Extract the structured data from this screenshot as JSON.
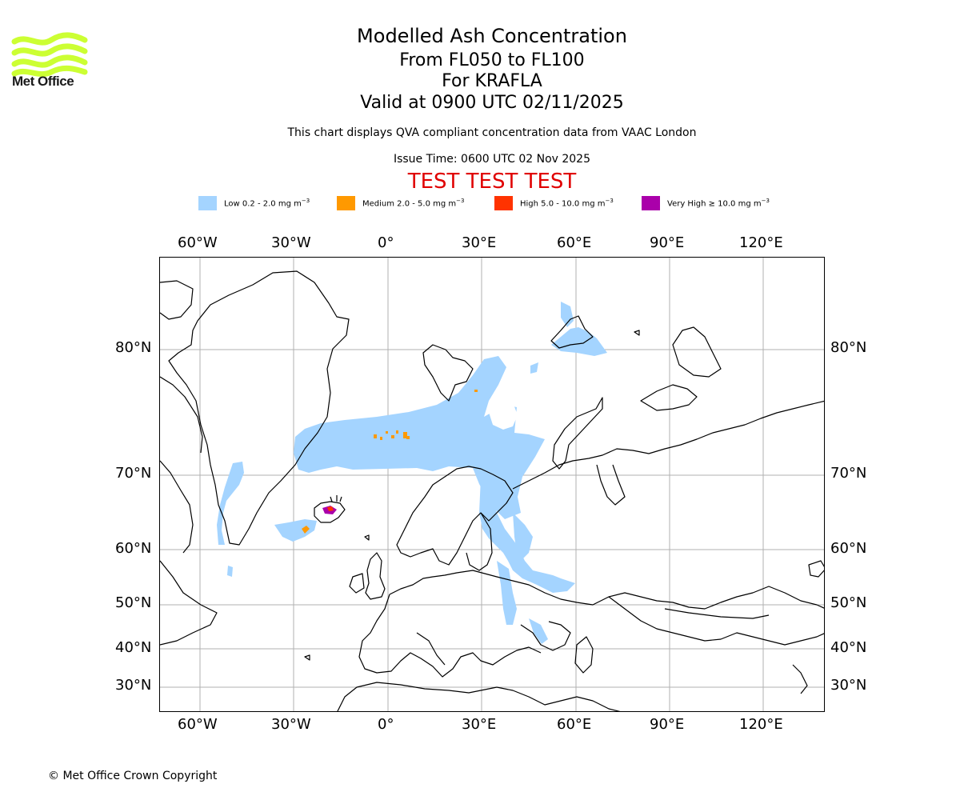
{
  "logo": {
    "text": "Met Office",
    "color": "#ccff33"
  },
  "title": {
    "line1": "Modelled Ash Concentration",
    "line2": "From FL050 to FL100",
    "line3": "For KRAFLA",
    "line4": "Valid at 0900 UTC 02/11/2025"
  },
  "subtitle": "This chart displays QVA compliant concentration data from VAAC London",
  "issue_time": "Issue Time: 0600 UTC 02 Nov 2025",
  "banner": {
    "text": "TEST TEST TEST",
    "color": "#e00000"
  },
  "legend": [
    {
      "label": "Low 0.2 - 2.0 mg m",
      "color": "#a4d4ff"
    },
    {
      "label": "Medium 2.0 - 5.0 mg m",
      "color": "#ff9900"
    },
    {
      "label": "High 5.0 - 10.0 mg m",
      "color": "#ff3300"
    },
    {
      "label": "Very High ≥ 10.0 mg m",
      "color": "#aa00aa"
    }
  ],
  "legend_unit_exponent": "−3",
  "axes": {
    "lon_ticks": [
      "60°W",
      "30°W",
      "0°",
      "30°E",
      "60°E",
      "90°E",
      "120°E"
    ],
    "lat_ticks": [
      "80°N",
      "70°N",
      "60°N",
      "50°N",
      "40°N",
      "30°N"
    ]
  },
  "copyright": "© Met Office Crown Copyright"
}
